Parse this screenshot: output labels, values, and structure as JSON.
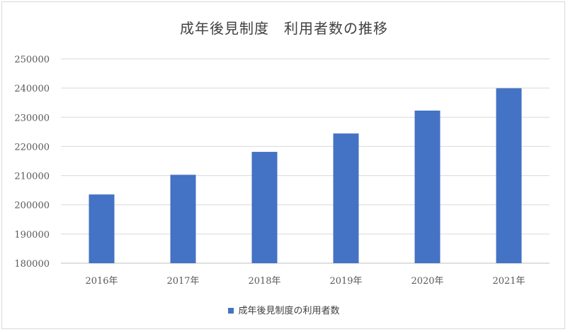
{
  "chart_data": {
    "type": "bar",
    "title": "成年後見制度　利用者数の推移",
    "categories": [
      "2016年",
      "2017年",
      "2018年",
      "2019年",
      "2020年",
      "2021年"
    ],
    "series": [
      {
        "name": "成年後見制度の利用者数",
        "values": [
          203551,
          210290,
          218142,
          224442,
          232287,
          239933
        ],
        "color": "#4472c4"
      }
    ],
    "ylim": [
      180000,
      250000
    ],
    "yticks": [
      180000,
      190000,
      200000,
      210000,
      220000,
      230000,
      240000,
      250000
    ],
    "grid": true,
    "legend": "bottom",
    "xlabel": "",
    "ylabel": ""
  }
}
